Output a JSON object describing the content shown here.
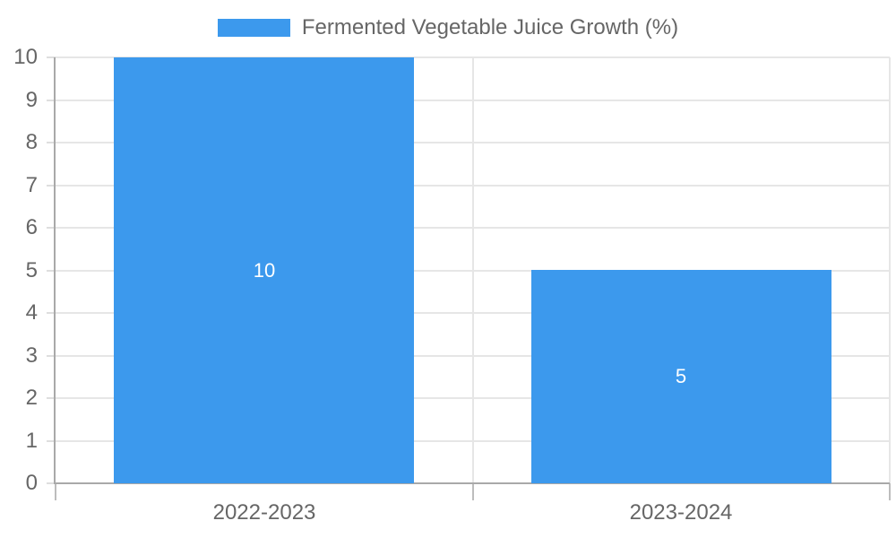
{
  "chart_data": {
    "type": "bar",
    "title": "",
    "legend_label": "Fermented Vegetable Juice Growth (%)",
    "legend_position": "top",
    "categories": [
      "2022-2023",
      "2023-2024"
    ],
    "values": [
      10,
      5
    ],
    "bar_labels": [
      "10",
      "5"
    ],
    "bar_label_position": "center",
    "ylim": [
      0,
      10
    ],
    "ytick_step": 1,
    "grid": true,
    "colors": {
      "bar": "#3C99ED",
      "text": "#666666",
      "bar_label_text": "#FFFFFF",
      "grid": "#E6E6E6",
      "axis": "#A9A9A9",
      "left_tick": "#DEDEDE",
      "bottom_tick": "#BDBDBD",
      "background": "#FFFFFF"
    }
  }
}
